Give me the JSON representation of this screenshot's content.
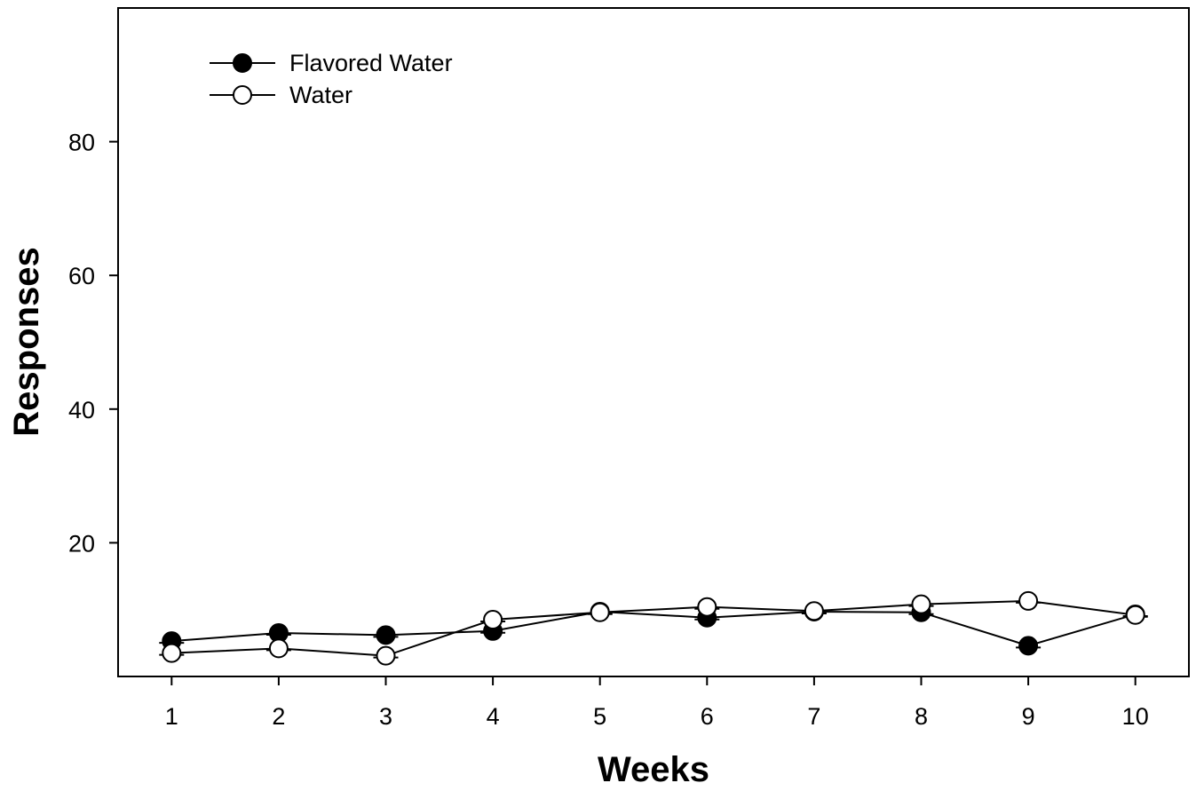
{
  "chart_data": {
    "type": "line",
    "title": "",
    "xlabel": "Weeks",
    "ylabel": "Responses",
    "categories": [
      "1",
      "2",
      "3",
      "4",
      "5",
      "6",
      "7",
      "8",
      "9",
      "10"
    ],
    "x": [
      1,
      2,
      3,
      4,
      5,
      6,
      7,
      8,
      9,
      10
    ],
    "xlim": [
      0.5,
      10.5
    ],
    "ylim": [
      0,
      100
    ],
    "yticks": [
      "20",
      "40",
      "60",
      "80"
    ],
    "grid": false,
    "legend_position": "top-left",
    "series": [
      {
        "name": "Flavored Water",
        "marker": "filled-circle",
        "color": "#000000",
        "values": [
          5.3,
          6.5,
          6.2,
          6.8,
          9.7,
          8.8,
          9.7,
          9.6,
          4.6,
          9.3
        ]
      },
      {
        "name": "Water",
        "marker": "open-circle",
        "color": "#000000",
        "values": [
          3.5,
          4.2,
          3.1,
          8.5,
          9.6,
          10.4,
          9.8,
          10.8,
          11.3,
          9.2
        ]
      }
    ]
  }
}
